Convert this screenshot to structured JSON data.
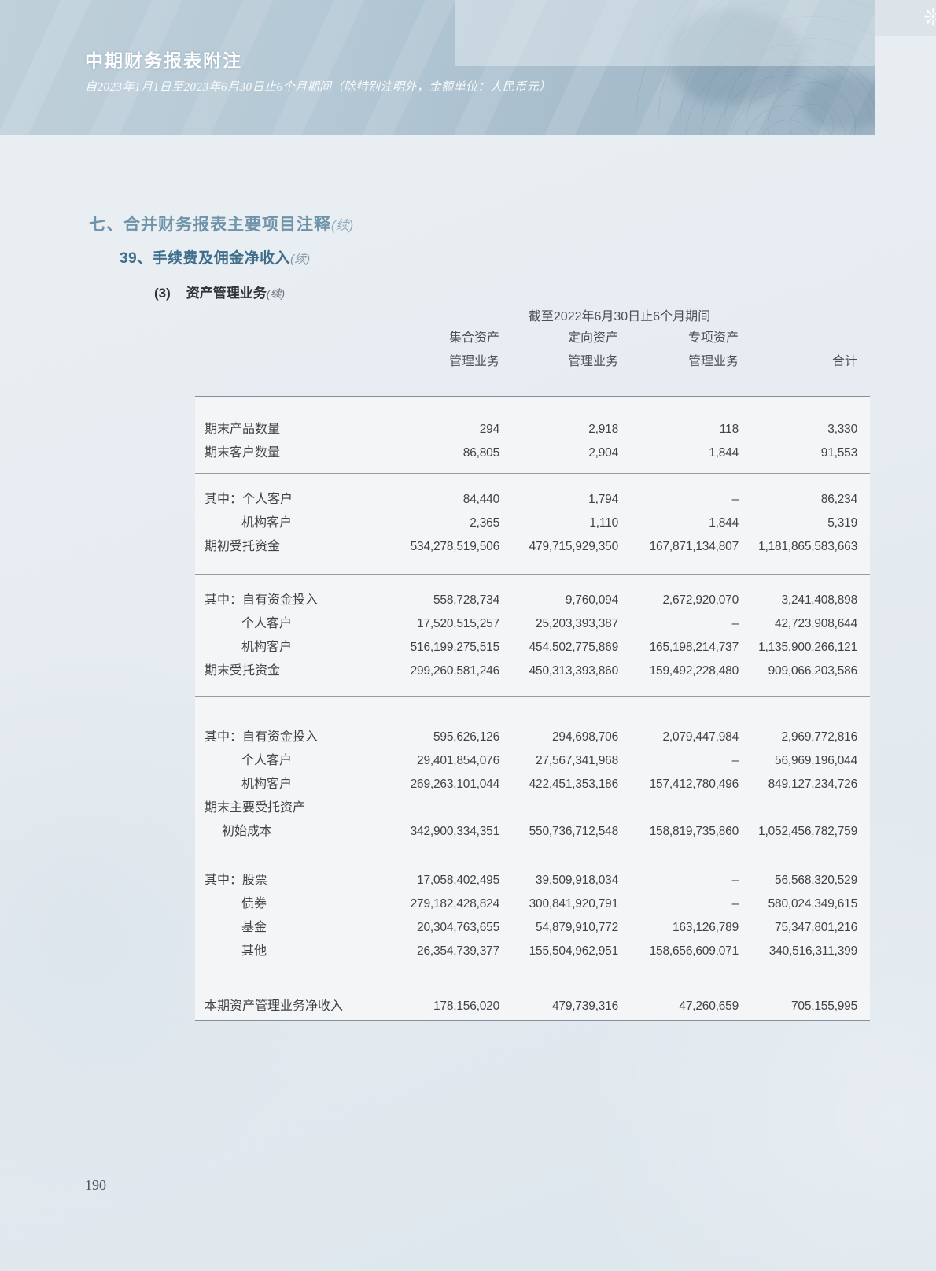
{
  "colors": {
    "banner_blue": "#aec3d1",
    "heading_blue": "#6f94aa",
    "heading_dark_blue": "#3f6d8c",
    "text_dark": "#3f4347",
    "band_bg": "#f4f5f6",
    "page_bg": "#e6ecf1",
    "line_grey": "#8e959b"
  },
  "icons": {
    "banner_flower_icon": "❊"
  },
  "header": {
    "title": "中期财务报表附注",
    "subtitle": "自2023年1月1日至2023年6月30日止6个月期间（除特别注明外，金额单位：人民币元）"
  },
  "headings": {
    "section": {
      "text": "七、合并财务报表主要项目注释",
      "cont": "(续)"
    },
    "note": {
      "text": "39、手续费及佣金净收入",
      "cont": "(续)"
    },
    "sub": {
      "num": "(3)",
      "text": "资产管理业务",
      "cont": "(续)"
    }
  },
  "table": {
    "period_header": "截至2022年6月30日止6个月期间",
    "columns": [
      {
        "line1": "集合资产",
        "line2": "管理业务"
      },
      {
        "line1": "定向资产",
        "line2": "管理业务"
      },
      {
        "line1": "专项资产",
        "line2": "管理业务"
      },
      {
        "line1": "",
        "line2": "合计"
      }
    ],
    "groups": [
      {
        "rows": [
          {
            "label": "期末产品数量",
            "indent": 0,
            "values": [
              "294",
              "2,918",
              "118",
              "3,330"
            ]
          },
          {
            "label": "期末客户数量",
            "indent": 0,
            "values": [
              "86,805",
              "2,904",
              "1,844",
              "91,553"
            ]
          }
        ]
      },
      {
        "rows": [
          {
            "label": "其中：个人客户",
            "indent": 0,
            "values": [
              "84,440",
              "1,794",
              "–",
              "86,234"
            ]
          },
          {
            "label": "机构客户",
            "indent": 1,
            "values": [
              "2,365",
              "1,110",
              "1,844",
              "5,319"
            ]
          },
          {
            "label": "期初受托资金",
            "indent": 0,
            "values": [
              "534,278,519,506",
              "479,715,929,350",
              "167,871,134,807",
              "1,181,865,583,663"
            ]
          }
        ]
      },
      {
        "rows": [
          {
            "label": "其中：自有资金投入",
            "indent": 0,
            "values": [
              "558,728,734",
              "9,760,094",
              "2,672,920,070",
              "3,241,408,898"
            ]
          },
          {
            "label": "个人客户",
            "indent": 1,
            "values": [
              "17,520,515,257",
              "25,203,393,387",
              "–",
              "42,723,908,644"
            ]
          },
          {
            "label": "机构客户",
            "indent": 1,
            "values": [
              "516,199,275,515",
              "454,502,775,869",
              "165,198,214,737",
              "1,135,900,266,121"
            ]
          },
          {
            "label": "期末受托资金",
            "indent": 0,
            "values": [
              "299,260,581,246",
              "450,313,393,860",
              "159,492,228,480",
              "909,066,203,586"
            ]
          }
        ]
      },
      {
        "rows": [
          {
            "label": "其中：自有资金投入",
            "indent": 0,
            "values": [
              "595,626,126",
              "294,698,706",
              "2,079,447,984",
              "2,969,772,816"
            ]
          },
          {
            "label": "个人客户",
            "indent": 1,
            "values": [
              "29,401,854,076",
              "27,567,341,968",
              "–",
              "56,969,196,044"
            ]
          },
          {
            "label": "机构客户",
            "indent": 1,
            "values": [
              "269,263,101,044",
              "422,451,353,186",
              "157,412,780,496",
              "849,127,234,726"
            ]
          },
          {
            "label": "期末主要受托资产",
            "indent": 0,
            "values": []
          },
          {
            "label": "初始成本",
            "indent": 2,
            "values": [
              "342,900,334,351",
              "550,736,712,548",
              "158,819,735,860",
              "1,052,456,782,759"
            ]
          }
        ]
      },
      {
        "rows": [
          {
            "label": "其中：股票",
            "indent": 0,
            "values": [
              "17,058,402,495",
              "39,509,918,034",
              "–",
              "56,568,320,529"
            ]
          },
          {
            "label": "债券",
            "indent": 1,
            "values": [
              "279,182,428,824",
              "300,841,920,791",
              "–",
              "580,024,349,615"
            ]
          },
          {
            "label": "基金",
            "indent": 1,
            "values": [
              "20,304,763,655",
              "54,879,910,772",
              "163,126,789",
              "75,347,801,216"
            ]
          },
          {
            "label": "其他",
            "indent": 1,
            "values": [
              "26,354,739,377",
              "155,504,962,951",
              "158,656,609,071",
              "340,516,311,399"
            ]
          }
        ]
      },
      {
        "rows": [
          {
            "label": "本期资产管理业务净收入",
            "indent": 0,
            "values": [
              "178,156,020",
              "479,739,316",
              "47,260,659",
              "705,155,995"
            ]
          }
        ]
      }
    ]
  },
  "footer": {
    "page_number": "190"
  }
}
